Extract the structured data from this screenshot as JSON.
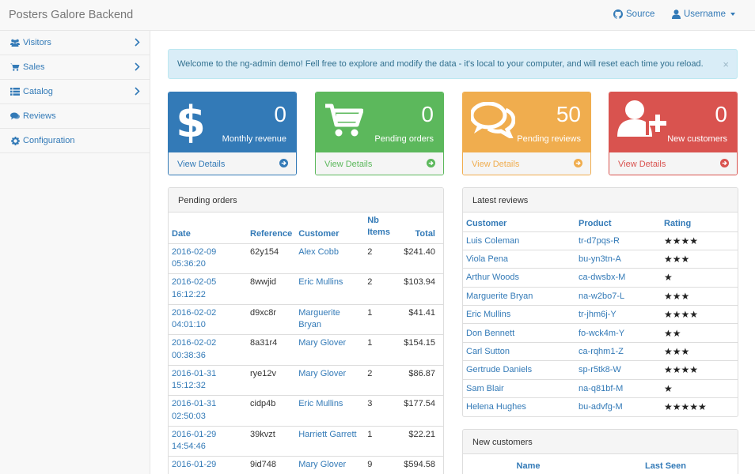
{
  "app": {
    "title": "Posters Galore Backend",
    "source_label": "Source",
    "user_label": "Username"
  },
  "sidebar": {
    "items": [
      {
        "label": "Visitors",
        "icon": "users-icon",
        "expandable": true
      },
      {
        "label": "Sales",
        "icon": "cart-icon",
        "expandable": true
      },
      {
        "label": "Catalog",
        "icon": "list-icon",
        "expandable": true
      },
      {
        "label": "Reviews",
        "icon": "comments-icon",
        "expandable": false
      },
      {
        "label": "Configuration",
        "icon": "cog-icon",
        "expandable": false
      }
    ]
  },
  "alert": {
    "message": "Welcome to the ng-admin demo! Fell free to explore and modify the data - it's local to your computer, and will reset each time you reload.",
    "close": "×"
  },
  "tiles": [
    {
      "value": "0",
      "label": "Monthly revenue",
      "link": "View Details",
      "icon": "dollar-icon",
      "color": "#337ab7",
      "footer_color": "#337ab7"
    },
    {
      "value": "0",
      "label": "Pending orders",
      "link": "View Details",
      "icon": "shopping-cart-icon",
      "color": "#5cb85c",
      "footer_color": "#5cb85c"
    },
    {
      "value": "50",
      "label": "Pending reviews",
      "link": "View Details",
      "icon": "comments-icon",
      "color": "#f0ad4e",
      "footer_color": "#f0ad4e"
    },
    {
      "value": "0",
      "label": "New customers",
      "link": "View Details",
      "icon": "user-plus-icon",
      "color": "#d9534f",
      "footer_color": "#d9534f"
    }
  ],
  "orders": {
    "title": "Pending orders",
    "headers": {
      "date": "Date",
      "reference": "Reference",
      "customer": "Customer",
      "nb1": "Nb",
      "nb2": "Items",
      "total": "Total"
    },
    "rows": [
      {
        "date1": "2016-02-09",
        "date2": "05:36:20",
        "reference": "62y154",
        "customer1": "Alex Cobb",
        "customer2": "",
        "nb": "2",
        "total": "$241.40"
      },
      {
        "date1": "2016-02-05",
        "date2": "16:12:22",
        "reference": "8wwjid",
        "customer1": "Eric Mullins",
        "customer2": "",
        "nb": "2",
        "total": "$103.94"
      },
      {
        "date1": "2016-02-02",
        "date2": "04:01:10",
        "reference": "d9xc8r",
        "customer1": "Marguerite",
        "customer2": "Bryan",
        "nb": "1",
        "total": "$41.41"
      },
      {
        "date1": "2016-02-02",
        "date2": "00:38:36",
        "reference": "8a31r4",
        "customer1": "Mary Glover",
        "customer2": "",
        "nb": "1",
        "total": "$154.15"
      },
      {
        "date1": "2016-01-31",
        "date2": "15:12:32",
        "reference": "rye12v",
        "customer1": "Mary Glover",
        "customer2": "",
        "nb": "2",
        "total": "$86.87"
      },
      {
        "date1": "2016-01-31",
        "date2": "02:50:03",
        "reference": "cidp4b",
        "customer1": "Eric Mullins",
        "customer2": "",
        "nb": "3",
        "total": "$177.54"
      },
      {
        "date1": "2016-01-29",
        "date2": "14:54:46",
        "reference": "39kvzt",
        "customer1": "Harriett Garrett",
        "customer2": "",
        "nb": "1",
        "total": "$22.21"
      },
      {
        "date1": "2016-01-29",
        "date2": "",
        "reference": "9id748",
        "customer1": "Mary Glover",
        "customer2": "",
        "nb": "9",
        "total": "$594.58"
      }
    ]
  },
  "reviews": {
    "title": "Latest reviews",
    "headers": {
      "customer": "Customer",
      "product": "Product",
      "rating": "Rating"
    },
    "rows": [
      {
        "customer": "Luis Coleman",
        "product": "tr-d7pqs-R",
        "rating": "★★★★"
      },
      {
        "customer": "Viola Pena",
        "product": "bu-yn3tn-A",
        "rating": "★★★"
      },
      {
        "customer": "Arthur Woods",
        "product": "ca-dwsbx-M",
        "rating": "★"
      },
      {
        "customer": "Marguerite Bryan",
        "product": "na-w2bo7-L",
        "rating": "★★★"
      },
      {
        "customer": "Eric Mullins",
        "product": "tr-jhm6j-Y",
        "rating": "★★★★"
      },
      {
        "customer": "Don Bennett",
        "product": "fo-wck4m-Y",
        "rating": "★★"
      },
      {
        "customer": "Carl Sutton",
        "product": "ca-rqhm1-Z",
        "rating": "★★★"
      },
      {
        "customer": "Gertrude Daniels",
        "product": "sp-r5tk8-W",
        "rating": "★★★★"
      },
      {
        "customer": "Sam Blair",
        "product": "na-q81bf-M",
        "rating": "★"
      },
      {
        "customer": "Helena Hughes",
        "product": "bu-advfg-M",
        "rating": "★★★★★"
      }
    ]
  },
  "customers": {
    "title": "New customers",
    "headers": {
      "name": "Name",
      "last_seen": "Last Seen"
    }
  }
}
